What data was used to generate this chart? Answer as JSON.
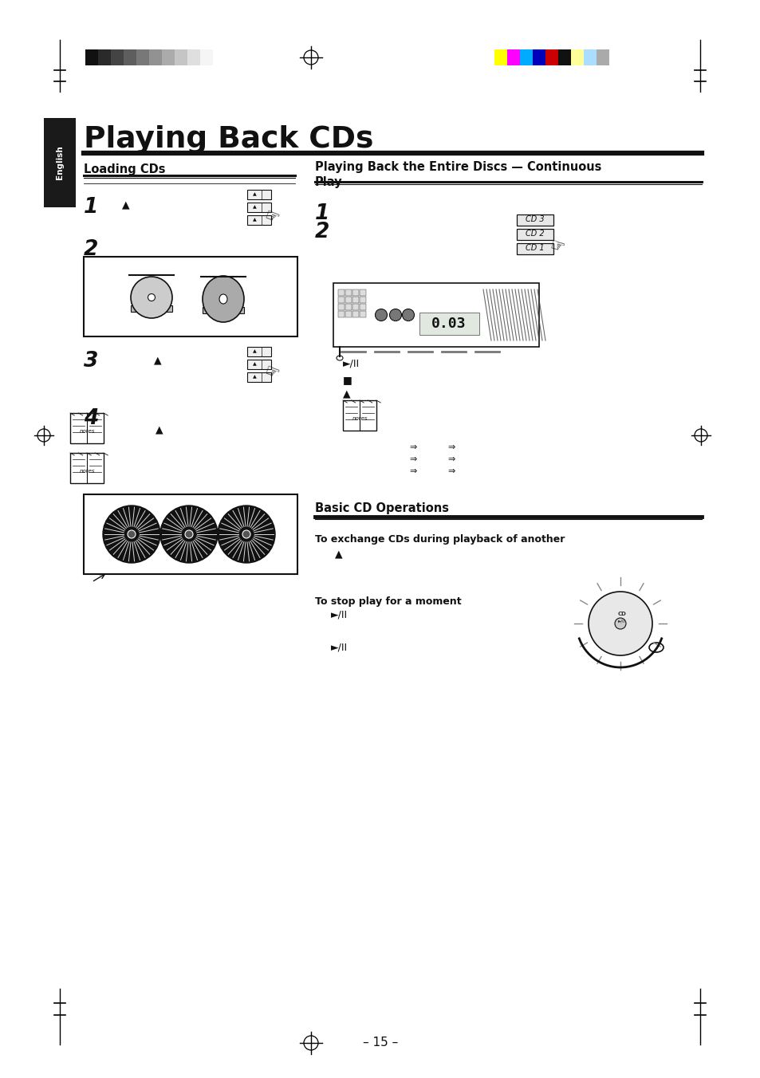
{
  "page_bg": "#ffffff",
  "title": "Playing Back CDs",
  "section_left": "Loading CDs",
  "section_right": "Playing Back the Entire Discs — Continuous\nPlay",
  "section_bottom": "Basic CD Operations",
  "page_number": "– 15 –",
  "left_tab_text": "English",
  "gray_bar_colors": [
    "#111111",
    "#2a2a2a",
    "#444444",
    "#5e5e5e",
    "#787878",
    "#929292",
    "#ababab",
    "#c5c5c5",
    "#dfdfdf",
    "#f5f5f5"
  ],
  "color_bar_colors": [
    "#ffff00",
    "#ff00ff",
    "#00aaff",
    "#0000bb",
    "#cc0000",
    "#111111",
    "#ffff99",
    "#aaddff",
    "#aaaaaa"
  ],
  "crosshair_color": "#000000",
  "line_color": "#000000",
  "figw": 9.54,
  "figh": 13.52,
  "dpi": 100
}
